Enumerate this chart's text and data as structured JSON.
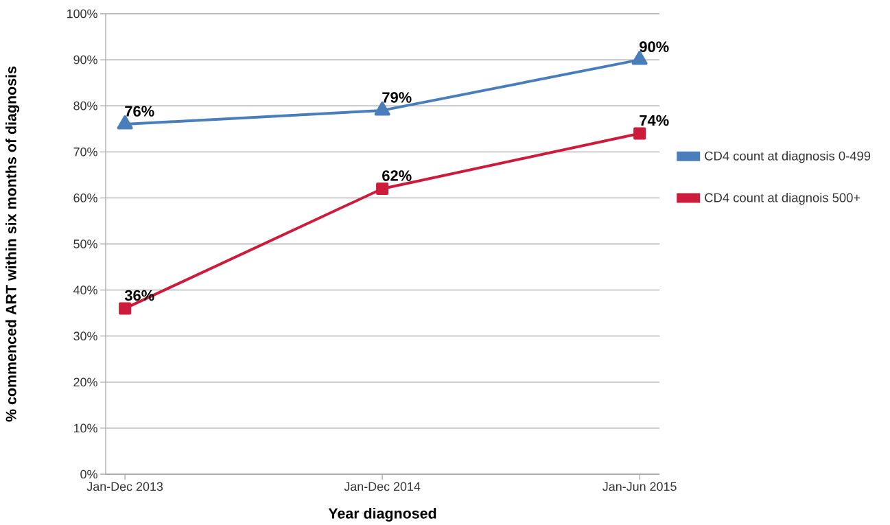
{
  "chart_data": {
    "type": "line",
    "xlabel": "Year diagnosed",
    "ylabel": "% commenced ART within six months of diagnosis",
    "categories": [
      "Jan-Dec 2013",
      "Jan-Dec 2014",
      "Jan-Jun 2015"
    ],
    "series": [
      {
        "name": "CD4 count at diagnosis 0-499",
        "color": "#4a7ebb",
        "marker": "triangle",
        "values": [
          76,
          79,
          90
        ],
        "value_labels": [
          "76%",
          "79%",
          "90%"
        ]
      },
      {
        "name": "CD4 count at diagnois 500+",
        "color": "#cc1b3b",
        "marker": "square",
        "values": [
          36,
          62,
          74
        ],
        "value_labels": [
          "36%",
          "62%",
          "74%"
        ]
      }
    ],
    "ylim": [
      0,
      100
    ],
    "yticks": [
      {
        "value": 0,
        "label": "0%"
      },
      {
        "value": 10,
        "label": "10%"
      },
      {
        "value": 20,
        "label": "20%"
      },
      {
        "value": 30,
        "label": "30%"
      },
      {
        "value": 40,
        "label": "40%"
      },
      {
        "value": 50,
        "label": "50%"
      },
      {
        "value": 60,
        "label": "60%"
      },
      {
        "value": 70,
        "label": "70%"
      },
      {
        "value": 80,
        "label": "80%"
      },
      {
        "value": 90,
        "label": "90%"
      },
      {
        "value": 100,
        "label": "100%"
      }
    ],
    "grid": "y",
    "legend": "right",
    "line_style": "solid"
  }
}
